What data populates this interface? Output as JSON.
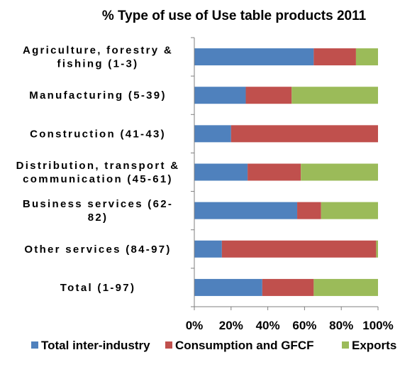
{
  "chart_data": {
    "type": "bar",
    "orientation": "horizontal",
    "stacked": "percent",
    "title": "% Type of use of Use table products 2011",
    "categories": [
      [
        "Agriculture, forestry &",
        "fishing (1-3)"
      ],
      [
        "Manufacturing (5-39)"
      ],
      [
        "Construction (41-43)"
      ],
      [
        "Distribution, transport &",
        "communication (45-61)"
      ],
      [
        "Business services (62-",
        "82)"
      ],
      [
        "Other services (84-97)"
      ],
      [
        "Total (1-97)"
      ]
    ],
    "series": [
      {
        "name": "Total inter-industry",
        "color": "#4f81bd",
        "values": [
          65,
          28,
          20,
          29,
          56,
          15,
          37
        ]
      },
      {
        "name": "Consumption and GFCF",
        "color": "#c0504d",
        "values": [
          23,
          25,
          80,
          29,
          13,
          84,
          28
        ]
      },
      {
        "name": "Exports",
        "color": "#9bbb59",
        "values": [
          12,
          47,
          0,
          42,
          31,
          1,
          35
        ]
      }
    ],
    "xlim": [
      0,
      100
    ],
    "xticks": [
      "0%",
      "20%",
      "40%",
      "60%",
      "80%",
      "100%"
    ],
    "grid": false,
    "legend": "bottom"
  }
}
